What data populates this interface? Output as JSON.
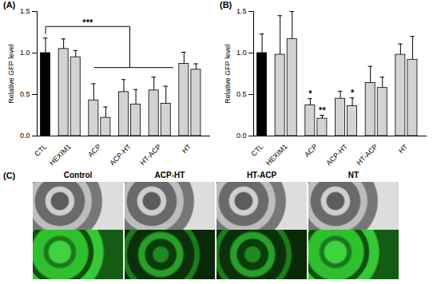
{
  "chart_data": [
    {
      "type": "bar",
      "title": "(A)",
      "y_label": "Relative GFP level",
      "ylim": [
        0,
        1.5
      ],
      "yticks": [
        {
          "value": 0,
          "label": "0.0"
        },
        {
          "value": 0.5,
          "label": "0.5"
        },
        {
          "value": 1,
          "label": "1.0"
        },
        {
          "value": 1.5,
          "label": "1.5"
        }
      ],
      "groups": [
        {
          "name": "CTL",
          "color": "#000000",
          "values": [
            1.0
          ],
          "errors": [
            0.18
          ]
        },
        {
          "name": "HEXIM1",
          "color": "#d3d3d3",
          "values": [
            1.05,
            0.95
          ],
          "errors": [
            0.12,
            0.08
          ]
        },
        {
          "name": "ACP",
          "color": "#d3d3d3",
          "values": [
            0.43,
            0.22
          ],
          "errors": [
            0.2,
            0.13
          ]
        },
        {
          "name": "ACP-HT",
          "color": "#d3d3d3",
          "values": [
            0.53,
            0.38
          ],
          "errors": [
            0.15,
            0.18
          ]
        },
        {
          "name": "HT-ACP",
          "color": "#d3d3d3",
          "values": [
            0.55,
            0.39
          ],
          "errors": [
            0.16,
            0.21
          ]
        },
        {
          "name": "HT",
          "color": "#d3d3d3",
          "values": [
            0.87,
            0.8
          ],
          "errors": [
            0.14,
            0.07
          ]
        }
      ],
      "bracket": {
        "label": "***",
        "from": "CTL",
        "to": [
          "ACP",
          "ACP-HT",
          "HT-ACP"
        ]
      }
    },
    {
      "type": "bar",
      "title": "(B)",
      "y_label": "Relative GFP level",
      "ylim": [
        0,
        1.5
      ],
      "yticks": [
        {
          "value": 0,
          "label": "0.0"
        },
        {
          "value": 0.5,
          "label": "0.5"
        },
        {
          "value": 1,
          "label": "1.0"
        },
        {
          "value": 1.5,
          "label": "1.5"
        }
      ],
      "groups": [
        {
          "name": "CTL",
          "color": "#000000",
          "values": [
            1.0
          ],
          "errors": [
            0.23
          ],
          "significance": [
            null
          ]
        },
        {
          "name": "HEXIM1",
          "color": "#d3d3d3",
          "values": [
            0.98,
            1.17
          ],
          "errors": [
            0.47,
            0.33
          ],
          "significance": [
            null,
            null
          ]
        },
        {
          "name": "ACP",
          "color": "#d3d3d3",
          "values": [
            0.37,
            0.21
          ],
          "errors": [
            0.08,
            0.04
          ],
          "significance": [
            "*",
            "**"
          ]
        },
        {
          "name": "ACP-HT",
          "color": "#d3d3d3",
          "values": [
            0.45,
            0.36
          ],
          "errors": [
            0.09,
            0.1
          ],
          "significance": [
            null,
            "*"
          ]
        },
        {
          "name": "HT-ACP",
          "color": "#d3d3d3",
          "values": [
            0.64,
            0.58
          ],
          "errors": [
            0.2,
            0.13
          ],
          "significance": [
            null,
            null
          ]
        },
        {
          "name": "HT",
          "color": "#d3d3d3",
          "values": [
            0.98,
            0.92
          ],
          "errors": [
            0.13,
            0.28
          ],
          "significance": [
            null,
            null
          ]
        }
      ]
    }
  ],
  "panel_c": {
    "title": "(C)",
    "columns": [
      "Control",
      "ACP-HT",
      "HT-ACP",
      "NT"
    ]
  }
}
